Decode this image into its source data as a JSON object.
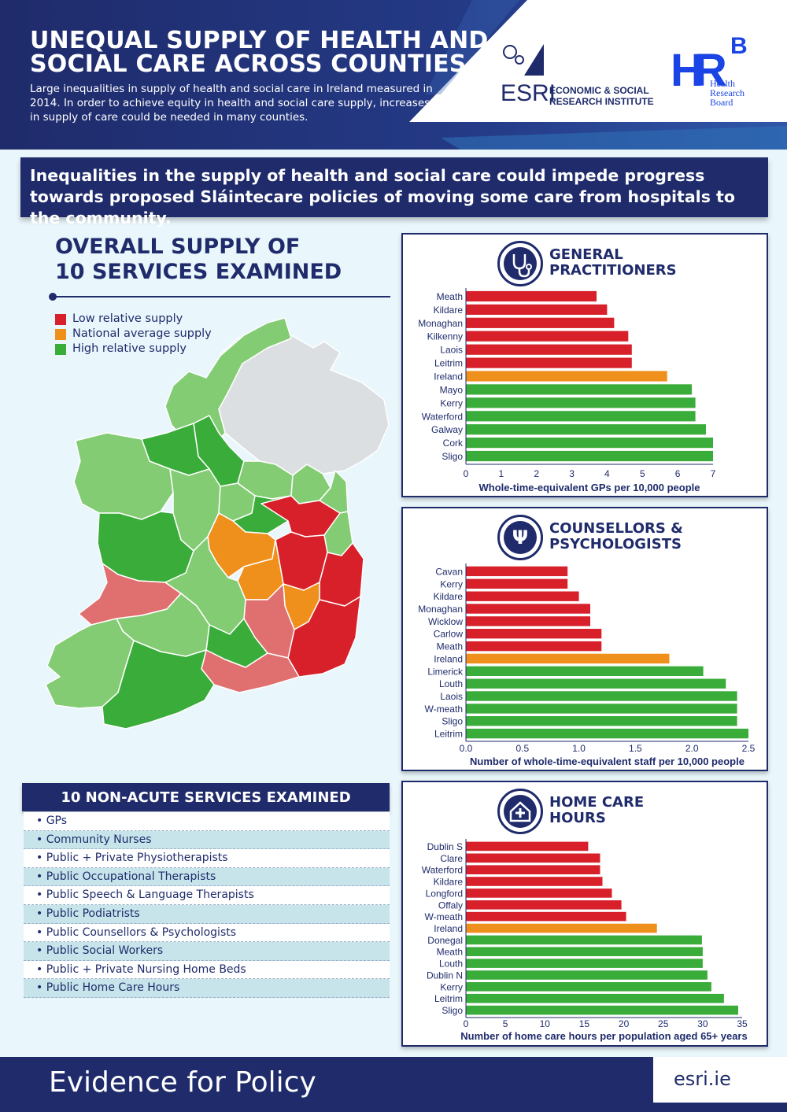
{
  "header": {
    "title_line1": "UNEQUAL SUPPLY OF HEALTH AND",
    "title_line2": "SOCIAL CARE ACROSS COUNTIES",
    "subtitle": "Large inequalities in supply of health and social care in Ireland measured in 2014. In order to achieve equity in health and social care supply, increases in supply of care could be needed in many counties.",
    "esri_mark": "ESRI",
    "esri_name_line1": "ECONOMIC & SOCIAL",
    "esri_name_line2": "RESEARCH INSTITUTE",
    "hrb_h": "H",
    "hrb_r": "R",
    "hrb_b": "B",
    "hrb_word1": "Health",
    "hrb_word2": "Research",
    "hrb_word3": "Board"
  },
  "banner": {
    "text": "Inequalities in the supply of health and social care could impede progress towards proposed Sláintecare policies of moving some care from hospitals to the community."
  },
  "overall": {
    "title_line1": "OVERALL SUPPLY OF",
    "title_line2": "10 SERVICES EXAMINED",
    "legend": [
      {
        "label": "Low relative supply",
        "color": "#d7202a"
      },
      {
        "label": "National average supply",
        "color": "#f0901c"
      },
      {
        "label": "High relative supply",
        "color": "#3aac3a"
      }
    ]
  },
  "services": {
    "title": "10 NON-ACUTE SERVICES EXAMINED",
    "items": [
      "• GPs",
      "• Community Nurses",
      "• Public + Private Physiotherapists",
      "• Public Occupational Therapists",
      "• Public Speech & Language Therapists",
      "• Public Podiatrists",
      "• Public Counsellors & Psychologists",
      "• Public Social Workers",
      "• Public + Private Nursing Home Beds",
      "• Public Home Care Hours"
    ]
  },
  "colors": {
    "low": "#d7202a",
    "average": "#f0901c",
    "high": "#3aac3a",
    "navy": "#1f2b6b"
  },
  "chart_data": [
    {
      "type": "bar",
      "orientation": "horizontal",
      "title_line1": "GENERAL",
      "title_line2": "PRACTITIONERS",
      "icon": "stethoscope-icon",
      "categories": [
        "Meath",
        "Kildare",
        "Monaghan",
        "Kilkenny",
        "Laois",
        "Leitrim",
        "Ireland",
        "Mayo",
        "Kerry",
        "Waterford",
        "Galway",
        "Cork",
        "Sligo"
      ],
      "values": [
        3.7,
        4.0,
        4.2,
        4.6,
        4.7,
        4.7,
        5.7,
        6.4,
        6.5,
        6.5,
        6.8,
        7.0,
        7.0
      ],
      "groups": [
        "low",
        "low",
        "low",
        "low",
        "low",
        "low",
        "average",
        "high",
        "high",
        "high",
        "high",
        "high",
        "high"
      ],
      "xlim": [
        0,
        7
      ],
      "ticks": [
        "0",
        "1",
        "2",
        "3",
        "4",
        "5",
        "6",
        "7"
      ],
      "xlabel": "Whole-time-equivalent GPs per 10,000 people"
    },
    {
      "type": "bar",
      "orientation": "horizontal",
      "title_line1": "COUNSELLORS &",
      "title_line2": "PSYCHOLOGISTS",
      "icon": "psi-icon",
      "categories": [
        "Cavan",
        "Kerry",
        "Kildare",
        "Monaghan",
        "Wicklow",
        "Carlow",
        "Meath",
        "Ireland",
        "Limerick",
        "Louth",
        "Laois",
        "W-meath",
        "Sligo",
        "Leitrim"
      ],
      "values": [
        0.9,
        0.9,
        1.0,
        1.1,
        1.1,
        1.2,
        1.2,
        1.8,
        2.1,
        2.3,
        2.4,
        2.4,
        2.4,
        2.5
      ],
      "groups": [
        "low",
        "low",
        "low",
        "low",
        "low",
        "low",
        "low",
        "average",
        "high",
        "high",
        "high",
        "high",
        "high",
        "high"
      ],
      "xlim": [
        0,
        2.5
      ],
      "ticks": [
        "0.0",
        "0.5",
        "1.0",
        "1.5",
        "2.0",
        "2.5"
      ],
      "xlabel": "Number of  whole-time-equivalent staff per 10,000 people"
    },
    {
      "type": "bar",
      "orientation": "horizontal",
      "title_line1": "HOME CARE",
      "title_line2": "HOURS",
      "icon": "home-care-icon",
      "categories": [
        "Dublin S",
        "Clare",
        "Waterford",
        "Kildare",
        "Longford",
        "Offaly",
        "W-meath",
        "Ireland",
        "Donegal",
        "Meath",
        "Louth",
        "Dublin N",
        "Kerry",
        "Leitrim",
        "Sligo"
      ],
      "values": [
        15.5,
        17.0,
        17.0,
        17.3,
        18.5,
        19.7,
        20.3,
        24.2,
        29.9,
        30.0,
        30.0,
        30.6,
        31.1,
        32.7,
        34.5
      ],
      "groups": [
        "low",
        "low",
        "low",
        "low",
        "low",
        "low",
        "low",
        "average",
        "high",
        "high",
        "high",
        "high",
        "high",
        "high",
        "high"
      ],
      "xlim": [
        0,
        35
      ],
      "ticks": [
        "0",
        "5",
        "10",
        "15",
        "20",
        "25",
        "30",
        "35"
      ],
      "xlabel": "Number of home care hours per population aged 65+ years"
    }
  ],
  "footer": {
    "tagline": "Evidence for Policy",
    "url": "esri.ie"
  }
}
